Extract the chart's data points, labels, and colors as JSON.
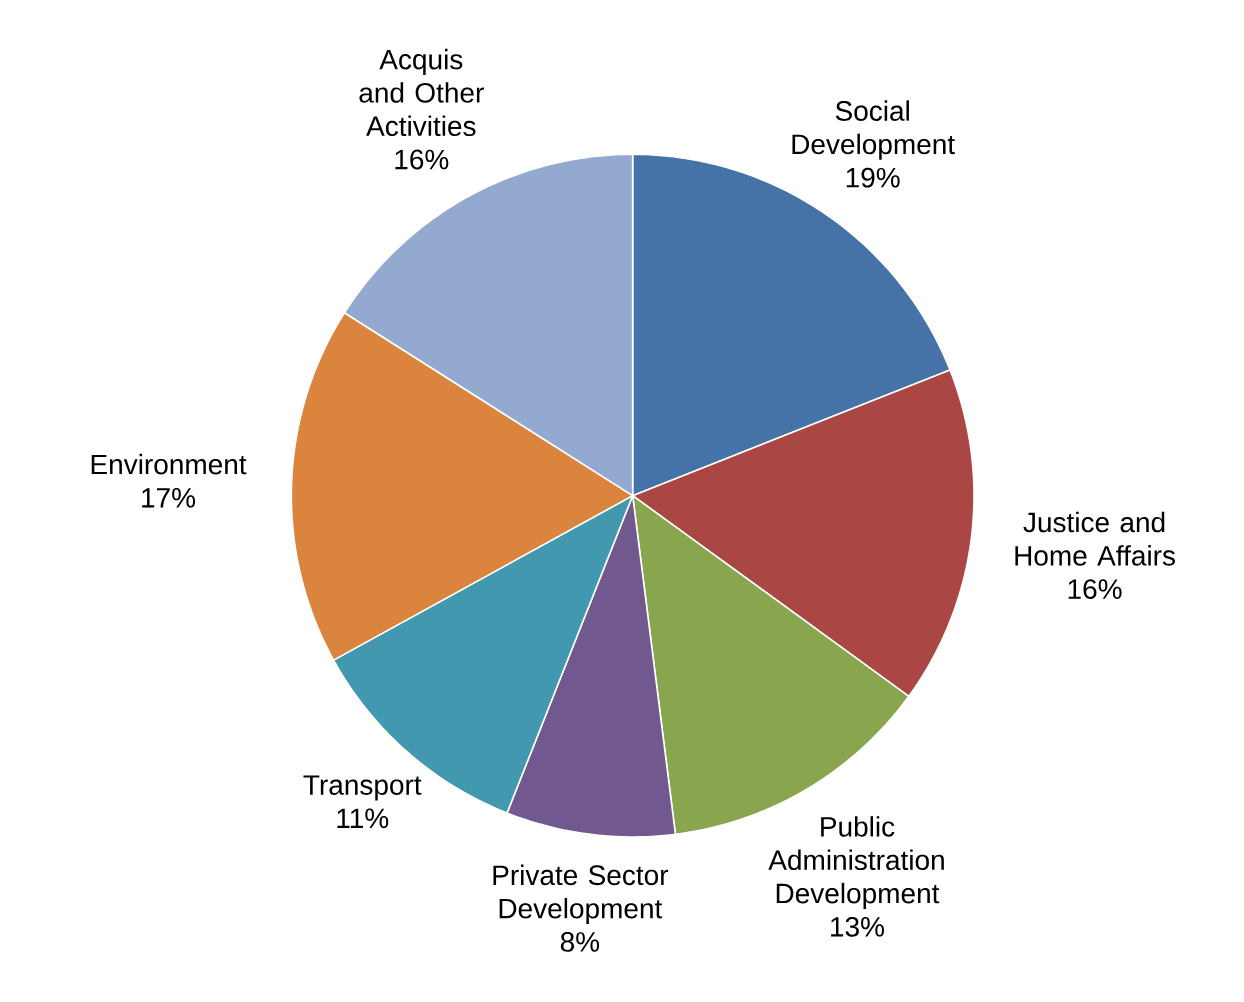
{
  "chart_data": {
    "type": "pie",
    "categories": [
      "Social Development",
      "Justice and Home Affairs",
      "Public Administration Development",
      "Private Sector Development",
      "Transport",
      "Environment",
      "Acquis and Other Activities"
    ],
    "values": [
      19,
      16,
      13,
      8,
      11,
      17,
      16
    ],
    "value_labels": [
      "19%",
      "16%",
      "13%",
      "8%",
      "11%",
      "17%",
      "16%"
    ],
    "colors": [
      "#4573a7",
      "#aa4644",
      "#89a54e",
      "#71588f",
      "#4198af",
      "#db843d",
      "#93a9cf"
    ]
  }
}
